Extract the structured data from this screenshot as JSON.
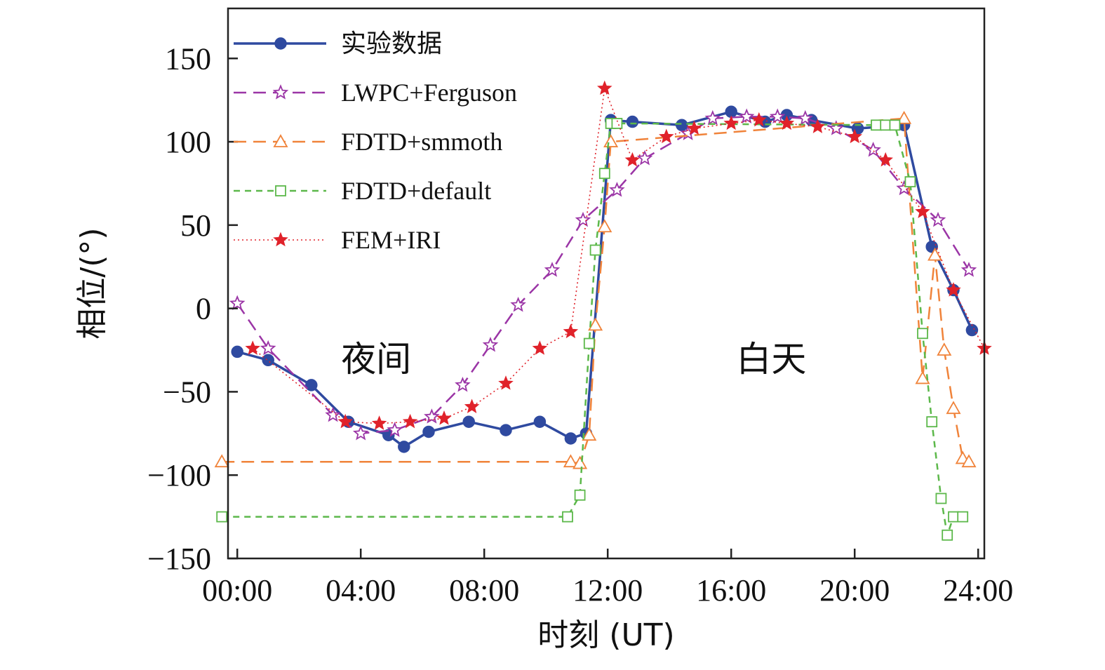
{
  "chart_data": {
    "type": "line",
    "xlabel": "时刻 (UT)",
    "ylabel": "相位/(°)",
    "xlim": [
      -0.3,
      24.2
    ],
    "ylim": [
      -150,
      180
    ],
    "xticks": [
      0,
      4,
      8,
      12,
      16,
      20,
      24
    ],
    "xtick_labels": [
      "00:00",
      "04:00",
      "08:00",
      "12:00",
      "16:00",
      "20:00",
      "24:00"
    ],
    "yticks": [
      -150,
      -100,
      -50,
      0,
      50,
      100,
      150
    ],
    "ytick_labels": [
      "−150",
      "−100",
      "−50",
      "0",
      "50",
      "100",
      "150"
    ],
    "annotations": [
      {
        "text": "夜间",
        "x": 4.5,
        "y": -30
      },
      {
        "text": "白天",
        "x": 17.3,
        "y": -30
      }
    ],
    "legend_position": "top-left",
    "grid": false,
    "series": [
      {
        "name": "实验数据",
        "color": "#2f4aa0",
        "line": "solid",
        "marker": "circle-filled",
        "x": [
          0,
          1,
          2.4,
          3.6,
          4.9,
          5.4,
          6.2,
          7.5,
          8.7,
          9.8,
          10.8,
          11.3,
          12.1,
          12.8,
          14.4,
          16,
          17.1,
          17.8,
          18.6,
          20.1,
          21.6,
          22.5,
          23.2,
          23.8
        ],
        "y": [
          -26,
          -31,
          -46,
          -68,
          -76,
          -83,
          -74,
          -68,
          -73,
          -68,
          -78,
          -75,
          113,
          112,
          110,
          118,
          112,
          116,
          113,
          108,
          110,
          37,
          11,
          -13
        ]
      },
      {
        "name": "LWPC+Ferguson",
        "color": "#9b35a6",
        "line": "dashed",
        "marker": "star-open",
        "x": [
          0,
          1,
          3.1,
          4,
          5.1,
          6.3,
          7.3,
          8.2,
          9.1,
          10.2,
          11.2,
          12.3,
          13.2,
          14.6,
          15.4,
          16.5,
          17.5,
          18.4,
          19.4,
          20.6,
          21.6,
          22.7,
          23.7
        ],
        "y": [
          3,
          -24,
          -64,
          -75,
          -73,
          -65,
          -46,
          -22,
          2,
          23,
          53,
          71,
          90,
          105,
          114,
          115,
          115,
          114,
          108,
          95,
          72,
          53,
          23
        ]
      },
      {
        "name": "FDTD+smmoth",
        "color": "#f0833a",
        "line": "dashed",
        "marker": "triangle-open",
        "x": [
          -0.5,
          10.8,
          11.1,
          11.4,
          11.6,
          11.9,
          12.1,
          21.6,
          22.2,
          22.6,
          22.9,
          23.2,
          23.5,
          23.7
        ],
        "y": [
          -92,
          -92,
          -93,
          -76,
          -10,
          49,
          100,
          114,
          -42,
          32,
          -25,
          -60,
          -90,
          -92
        ]
      },
      {
        "name": "FDTD+default",
        "color": "#5cb84a",
        "line": "dashed",
        "marker": "square-open",
        "x": [
          -0.5,
          10.7,
          11.1,
          11.4,
          11.6,
          11.9,
          12.1,
          12.3,
          20.7,
          21,
          21.3,
          21.8,
          22.2,
          22.5,
          22.8,
          23,
          23.2,
          23.5
        ],
        "y": [
          -125,
          -125,
          -112,
          -21,
          35,
          81,
          111,
          111,
          110,
          110,
          110,
          76,
          -15,
          -68,
          -114,
          -136,
          -125,
          -125
        ]
      },
      {
        "name": "FEM+IRI",
        "color": "#e0222a",
        "line": "dotted",
        "marker": "star-filled",
        "x": [
          0.5,
          3.5,
          4.6,
          5.6,
          6.7,
          7.6,
          8.7,
          9.8,
          10.8,
          11.9,
          12.8,
          13.9,
          14.8,
          16,
          16.9,
          17.8,
          18.8,
          20,
          21,
          22.2,
          23.2,
          24.2
        ],
        "y": [
          -24,
          -68,
          -69,
          -68,
          -66,
          -59,
          -45,
          -24,
          -14,
          132,
          89,
          103,
          108,
          111,
          113,
          111,
          109,
          103,
          89,
          58,
          11,
          -24
        ]
      }
    ]
  }
}
